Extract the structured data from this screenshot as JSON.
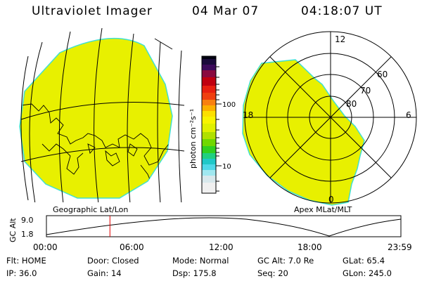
{
  "header": {
    "title": "Ultraviolet Imager",
    "date": "04 Mar 07",
    "time": "04:18:07 UT"
  },
  "colorbar": {
    "unit_label": "photon cm⁻²s⁻¹",
    "tick_100": "100",
    "tick_10": "10"
  },
  "geo_panel": {
    "label": "Geographic Lat/Lon",
    "fill_color": "#e8f000"
  },
  "polar_panel": {
    "label": "Apex MLat/MLT",
    "lat_60": "60",
    "lat_70": "70",
    "lat_80": "80",
    "mlt_12": "12",
    "mlt_18": "18",
    "mlt_6": "6",
    "mlt_0": "0"
  },
  "altitude_plot": {
    "axis_label": "GC Alt",
    "y_max": "9.0",
    "y_min": "1.8",
    "x_ticks": [
      "00:00",
      "06:00",
      "12:00",
      "18:00",
      "23:59"
    ],
    "marker_time_hours": 4.3
  },
  "info": {
    "flt": "Flt: HOME",
    "door": "Door: Closed",
    "mode": "Mode: Normal",
    "gc_alt": "GC Alt: 7.0 Re",
    "glat": "GLat:  65.4",
    "ip": "IP: 36.0",
    "gain": "Gain: 14",
    "dsp": "Dsp:   175.8",
    "seq": "Seq: 20",
    "glon": "GLon: 245.0"
  }
}
